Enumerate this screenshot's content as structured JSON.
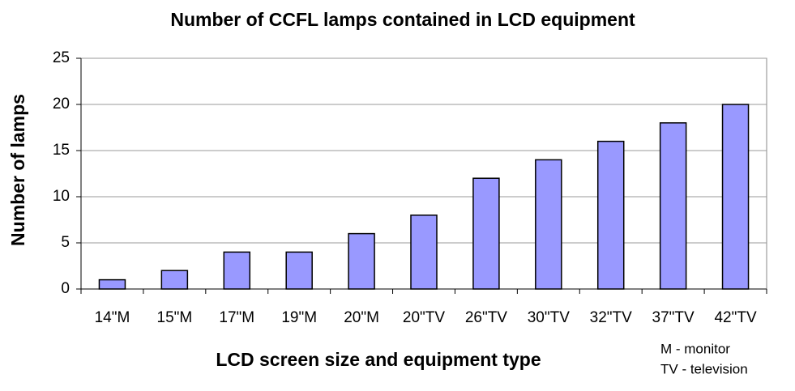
{
  "chart_data": {
    "type": "bar",
    "title": "Number of CCFL lamps contained in LCD equipment",
    "x_label": "LCD screen size and equipment type",
    "y_label": "Number of lamps",
    "annotations": [
      "M  - monitor",
      "TV - television"
    ],
    "categories": [
      "14\"M",
      "15\"M",
      "17\"M",
      "19\"M",
      "20\"M",
      "20\"TV",
      "26\"TV",
      "30\"TV",
      "32\"TV",
      "37\"TV",
      "42\"TV"
    ],
    "values": [
      1,
      2,
      4,
      4,
      6,
      8,
      12,
      14,
      16,
      18,
      20
    ],
    "color": "#9999ff",
    "ylim": [
      0,
      25
    ],
    "yticks": [
      0,
      5,
      10,
      15,
      20,
      25
    ],
    "grid": true
  }
}
